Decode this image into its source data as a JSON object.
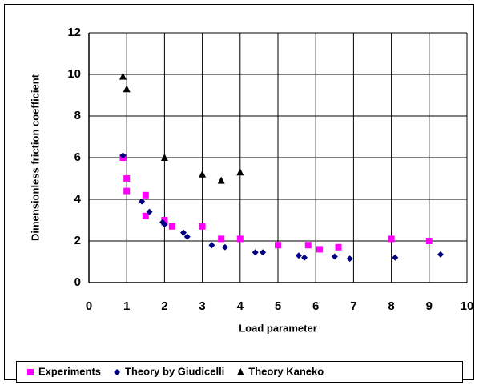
{
  "chart_data": {
    "type": "scatter",
    "xlabel": "Load parameter",
    "ylabel": "Dimensionless friction coefficient",
    "xlim": [
      0,
      10
    ],
    "xticks": [
      0,
      1,
      2,
      3,
      4,
      5,
      6,
      7,
      8,
      9,
      10
    ],
    "ylim": [
      0,
      12
    ],
    "yticks": [
      0,
      2,
      4,
      6,
      8,
      10,
      12
    ],
    "grid": true,
    "legend": "bottom",
    "series": [
      {
        "name": "Experiments",
        "color": "#ff00ff",
        "marker": "square",
        "x": [
          0.9,
          1.0,
          1.0,
          1.5,
          1.5,
          2.0,
          2.0,
          2.2,
          3.0,
          3.5,
          4.0,
          5.0,
          5.8,
          6.1,
          6.6,
          8.0,
          9.0
        ],
        "values": [
          6.0,
          5.0,
          4.4,
          4.2,
          3.2,
          3.0,
          2.9,
          2.7,
          2.7,
          2.1,
          2.1,
          1.8,
          1.8,
          1.6,
          1.7,
          2.1,
          2.0
        ]
      },
      {
        "name": "Theory by Giudicelli",
        "color": "#000080",
        "marker": "diamond",
        "x": [
          0.9,
          1.4,
          1.6,
          1.95,
          2.0,
          2.5,
          2.6,
          3.25,
          3.6,
          4.4,
          4.6,
          5.55,
          5.7,
          6.5,
          6.9,
          8.1,
          9.3
        ],
        "values": [
          6.1,
          3.9,
          3.4,
          2.9,
          2.8,
          2.4,
          2.2,
          1.8,
          1.7,
          1.45,
          1.45,
          1.3,
          1.2,
          1.25,
          1.15,
          1.2,
          1.35
        ]
      },
      {
        "name": "Theory Kaneko",
        "color": "#000000",
        "marker": "triangle",
        "x": [
          0.9,
          1.0,
          2.0,
          3.0,
          3.5,
          4.0
        ],
        "values": [
          9.9,
          9.3,
          6.0,
          5.2,
          4.9,
          5.3
        ]
      }
    ]
  }
}
